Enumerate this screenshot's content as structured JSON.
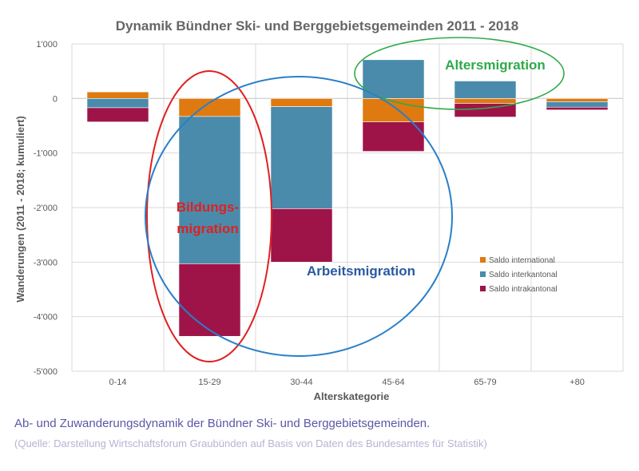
{
  "chart_data": {
    "type": "bar",
    "stacked": true,
    "title": "Dynamik Bündner Ski- und Berggebietsgemeinden 2011 - 2018",
    "xlabel": "Alterskategorie",
    "ylabel": "Wanderungen (2011 - 2018; kumuliert)",
    "categories": [
      "0-14",
      "15-29",
      "30-44",
      "45-64",
      "65-79",
      "+80"
    ],
    "ylim": [
      -5000,
      1000
    ],
    "yticks": [
      1000,
      0,
      -1000,
      -2000,
      -3000,
      -4000,
      -5000
    ],
    "ytick_labels": [
      "1'000",
      "0",
      "-1'000",
      "-2'000",
      "-3'000",
      "-4'000",
      "-5'000"
    ],
    "grid": true,
    "legend_position": "bottom-right inside",
    "series": [
      {
        "name": "Saldo international",
        "color": "#de7a10",
        "values": [
          120,
          -330,
          -150,
          -430,
          -90,
          -60
        ]
      },
      {
        "name": "Saldo interkantonal",
        "color": "#4a8bac",
        "values": [
          -170,
          -2700,
          -1870,
          710,
          320,
          -100
        ]
      },
      {
        "name": "Saldo intrakantonal",
        "color": "#9e1449",
        "values": [
          -260,
          -1330,
          -980,
          -540,
          -250,
          -50
        ]
      }
    ],
    "annotations": [
      {
        "text": "Altersmigration",
        "color": "#2eaa4a",
        "shape": "ellipse"
      },
      {
        "text": "Bildungs-",
        "text2": "migration",
        "color": "#e02020",
        "shape": "ellipse"
      },
      {
        "text": "Arbeitsmigration",
        "color": "#2a5aa0",
        "shape": "ellipse",
        "ellipse_color": "#2a7fc8"
      }
    ]
  },
  "colors": {
    "title": "#666666",
    "axis_text": "#595959",
    "gridline": "#d9d9d9",
    "caption": "#5b57a6",
    "source": "#b6b4d6"
  },
  "caption": {
    "main": "Ab- und Zuwanderungsdynamik der Bündner Ski- und Berggebietsgemeinden.",
    "source": "(Quelle: Darstellung Wirtschaftsforum Graubünden auf Basis von Daten des Bundesamtes für Statistik)"
  }
}
